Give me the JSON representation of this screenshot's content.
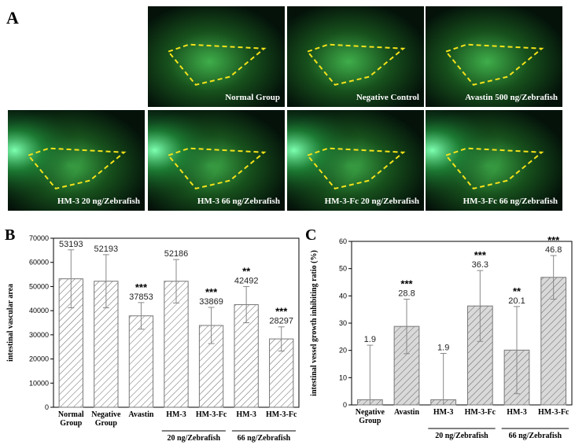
{
  "panel_labels": [
    "A",
    "B",
    "C"
  ],
  "images": [
    "Normal Group",
    "Negative Control",
    "Avastin 500 ng/Zebrafish",
    "HM-3 20 ng/Zebrafish",
    "HM-3 66 ng/Zebrafish",
    "HM-3-Fc 20 ng/Zebrafish",
    "HM-3-Fc 66 ng/Zebrafish"
  ],
  "chart_data": [
    {
      "type": "bar",
      "y_label": "intestinal vascular area",
      "categories": [
        "Normal Group",
        "Negative Group",
        "Avastin",
        "HM-3",
        "HM-3-Fc",
        "HM-3",
        "HM-3-Fc"
      ],
      "values": [
        53193,
        52193,
        37853,
        52186,
        33869,
        42492,
        28297
      ],
      "errors": [
        12000,
        11000,
        5500,
        9000,
        7500,
        7500,
        5000
      ],
      "significance": [
        null,
        null,
        "***",
        null,
        "***",
        "**",
        "***"
      ],
      "group_labels": [
        "20 ng/Zebrafish",
        "66 ng/Zebrafish"
      ],
      "color": "#ffffff",
      "hatch_color": "#666666",
      "ylim": [
        0,
        70000
      ],
      "yticks": [
        0,
        10000,
        20000,
        30000,
        40000,
        50000,
        60000,
        70000
      ]
    },
    {
      "type": "bar",
      "y_label": "intestinal vessel growth inhibiting ratio (%)",
      "categories": [
        "Negative Group",
        "Avastin",
        "HM-3",
        "HM-3-Fc",
        "HM-3",
        "HM-3-Fc"
      ],
      "values": [
        1.9,
        28.8,
        1.9,
        36.3,
        20.1,
        46.8
      ],
      "errors": [
        20,
        10,
        17,
        13,
        16,
        8
      ],
      "significance": [
        null,
        "***",
        null,
        "***",
        "**",
        "***"
      ],
      "group_labels": [
        "20 ng/Zebrafish",
        "66 ng/Zebrafish"
      ],
      "color": "#d9d9d9",
      "hatch_color": "#666666",
      "ylim": [
        0,
        60
      ],
      "yticks": [
        0,
        10,
        20,
        30,
        40,
        50,
        60
      ]
    }
  ]
}
